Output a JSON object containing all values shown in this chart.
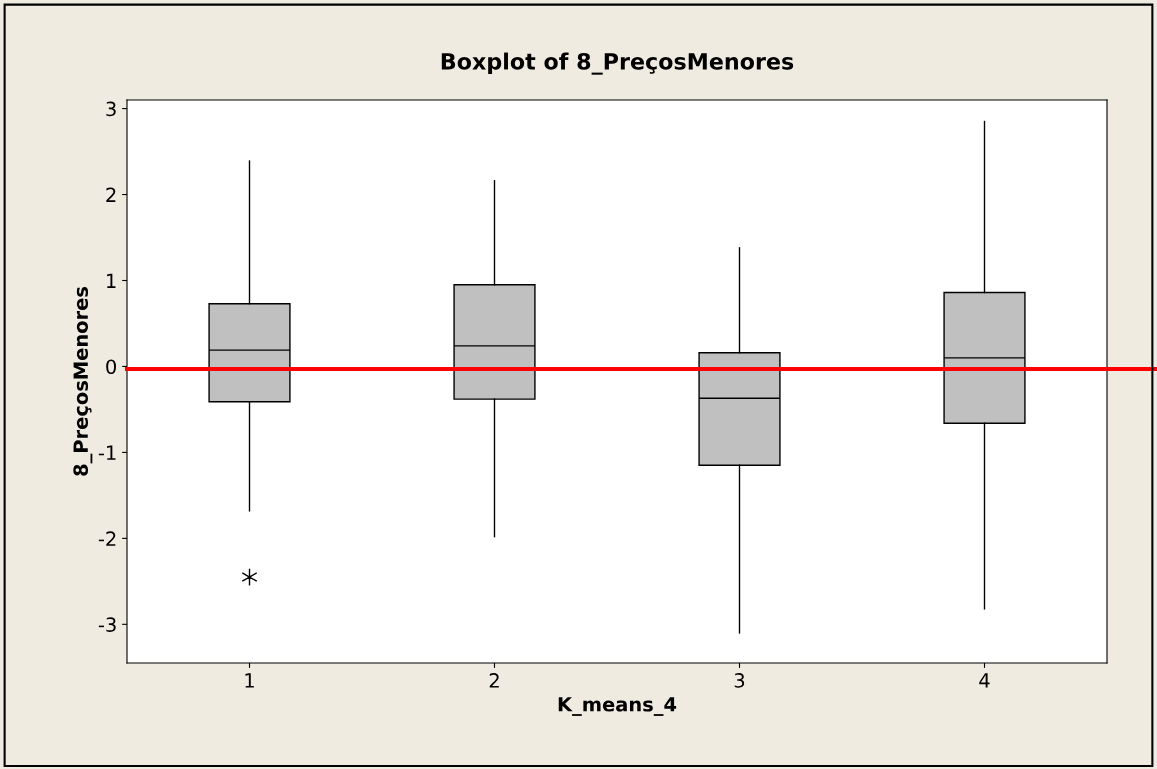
{
  "chart_data": {
    "type": "box",
    "title": "Boxplot of 8_PreçosMenores",
    "xlabel": "K_means_4",
    "ylabel": "8_PreçosMenores",
    "categories": [
      "1",
      "2",
      "3",
      "4"
    ],
    "boxes": [
      {
        "low": -1.68,
        "q1": -0.41,
        "median": 0.19,
        "q3": 0.73,
        "high": 2.39,
        "outliers": [
          -2.45
        ]
      },
      {
        "low": -1.98,
        "q1": -0.38,
        "median": 0.24,
        "q3": 0.95,
        "high": 2.16
      },
      {
        "low": -3.1,
        "q1": -1.15,
        "median": -0.37,
        "q3": 0.16,
        "high": 1.38
      },
      {
        "low": -2.82,
        "q1": -0.66,
        "median": 0.1,
        "q3": 0.86,
        "high": 2.85
      }
    ],
    "color": "#c0c0c0",
    "marker": "star",
    "ylim": [
      -3.45,
      3.1
    ],
    "yticks": [
      -3,
      -2,
      -1,
      0,
      1,
      2,
      3
    ],
    "ref_lines": [
      {
        "axis": "y",
        "value": -0.03,
        "color": "#ff0000"
      }
    ],
    "grid": false
  }
}
